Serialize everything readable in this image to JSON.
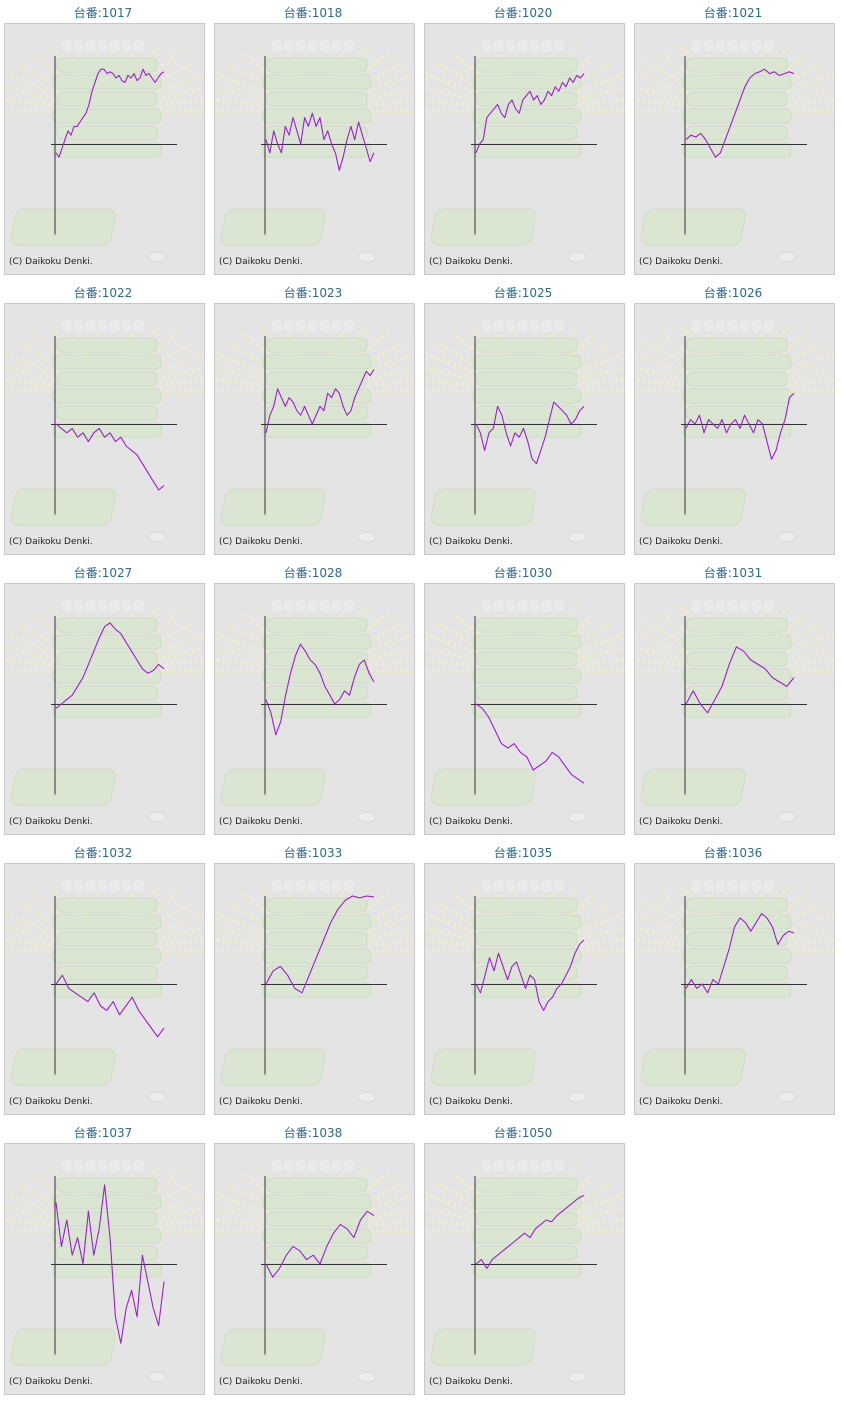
{
  "title_prefix": "台番:",
  "copyright": "(C) Daikoku Denki.",
  "colors": {
    "line": "#9b1fd0",
    "axis": "#333333",
    "title": "#2d6a8f",
    "panel_bg": "#e4e4e4"
  },
  "chart_data": [
    {
      "type": "line",
      "machine": "1017",
      "baseline": 0,
      "values": [
        -0.1,
        -0.15,
        -0.05,
        0.05,
        0.15,
        0.1,
        0.2,
        0.2,
        0.25,
        0.3,
        0.35,
        0.45,
        0.6,
        0.7,
        0.8,
        0.85,
        0.85,
        0.8,
        0.82,
        0.8,
        0.75,
        0.78,
        0.72,
        0.7,
        0.78,
        0.75,
        0.8,
        0.72,
        0.75,
        0.85,
        0.78,
        0.8,
        0.75,
        0.7,
        0.75,
        0.8,
        0.82
      ]
    },
    {
      "type": "line",
      "machine": "1018",
      "baseline": 0,
      "values": [
        0.05,
        -0.1,
        0.15,
        0.0,
        -0.1,
        0.2,
        0.1,
        0.3,
        0.15,
        0.0,
        0.3,
        0.2,
        0.35,
        0.2,
        0.3,
        0.05,
        0.15,
        0.0,
        -0.1,
        -0.3,
        -0.15,
        0.05,
        0.2,
        0.05,
        0.25,
        0.1,
        -0.05,
        -0.2,
        -0.1
      ]
    },
    {
      "type": "line",
      "machine": "1020",
      "baseline": 0,
      "values": [
        -0.1,
        0.0,
        0.05,
        0.3,
        0.35,
        0.4,
        0.45,
        0.35,
        0.3,
        0.45,
        0.5,
        0.4,
        0.35,
        0.5,
        0.55,
        0.6,
        0.5,
        0.55,
        0.45,
        0.5,
        0.6,
        0.55,
        0.65,
        0.6,
        0.7,
        0.65,
        0.75,
        0.7,
        0.78,
        0.75,
        0.8
      ]
    },
    {
      "type": "line",
      "machine": "1021",
      "baseline": 0,
      "values": [
        0.05,
        0.1,
        0.08,
        0.12,
        0.05,
        -0.05,
        -0.15,
        -0.1,
        0.05,
        0.2,
        0.35,
        0.5,
        0.65,
        0.75,
        0.8,
        0.82,
        0.85,
        0.8,
        0.82,
        0.78,
        0.8,
        0.82,
        0.8
      ]
    },
    {
      "type": "line",
      "machine": "1022",
      "baseline": 0,
      "values": [
        0.0,
        -0.05,
        -0.1,
        -0.05,
        -0.15,
        -0.1,
        -0.2,
        -0.1,
        -0.05,
        -0.15,
        -0.1,
        -0.2,
        -0.15,
        -0.25,
        -0.3,
        -0.35,
        -0.45,
        -0.55,
        -0.65,
        -0.75,
        -0.7
      ]
    },
    {
      "type": "line",
      "machine": "1023",
      "baseline": 0,
      "values": [
        -0.1,
        0.1,
        0.2,
        0.4,
        0.3,
        0.2,
        0.3,
        0.25,
        0.15,
        0.1,
        0.2,
        0.1,
        0.0,
        0.1,
        0.2,
        0.15,
        0.35,
        0.3,
        0.4,
        0.35,
        0.2,
        0.1,
        0.15,
        0.3,
        0.4,
        0.5,
        0.6,
        0.55,
        0.62
      ]
    },
    {
      "type": "line",
      "machine": "1025",
      "baseline": 0,
      "values": [
        0.0,
        -0.1,
        -0.3,
        -0.1,
        -0.05,
        0.2,
        0.1,
        -0.1,
        -0.25,
        -0.1,
        -0.15,
        -0.05,
        -0.2,
        -0.4,
        -0.45,
        -0.3,
        -0.15,
        0.05,
        0.25,
        0.2,
        0.15,
        0.1,
        0.0,
        0.05,
        0.15,
        0.2
      ]
    },
    {
      "type": "line",
      "machine": "1026",
      "baseline": 0,
      "values": [
        -0.05,
        0.05,
        0.0,
        0.1,
        -0.1,
        0.05,
        0.0,
        -0.05,
        0.05,
        -0.1,
        0.0,
        0.05,
        -0.05,
        0.1,
        0.0,
        -0.1,
        0.05,
        0.0,
        -0.2,
        -0.4,
        -0.3,
        -0.1,
        0.05,
        0.3,
        0.35
      ]
    },
    {
      "type": "line",
      "machine": "1027",
      "baseline": 0,
      "values": [
        -0.05,
        0.0,
        0.05,
        0.1,
        0.2,
        0.3,
        0.45,
        0.6,
        0.75,
        0.88,
        0.92,
        0.85,
        0.8,
        0.7,
        0.6,
        0.5,
        0.4,
        0.35,
        0.38,
        0.45,
        0.4
      ]
    },
    {
      "type": "line",
      "machine": "1028",
      "baseline": 0,
      "values": [
        0.05,
        -0.1,
        -0.35,
        -0.2,
        0.1,
        0.35,
        0.55,
        0.68,
        0.6,
        0.5,
        0.45,
        0.35,
        0.2,
        0.1,
        0.0,
        0.05,
        0.15,
        0.1,
        0.3,
        0.45,
        0.5,
        0.35,
        0.25
      ]
    },
    {
      "type": "line",
      "machine": "1030",
      "baseline": 0,
      "values": [
        0.0,
        -0.05,
        -0.15,
        -0.3,
        -0.45,
        -0.5,
        -0.45,
        -0.55,
        -0.6,
        -0.75,
        -0.7,
        -0.65,
        -0.55,
        -0.6,
        -0.7,
        -0.8,
        -0.85,
        -0.9
      ]
    },
    {
      "type": "line",
      "machine": "1031",
      "baseline": 0,
      "values": [
        0.0,
        0.15,
        0.0,
        -0.1,
        0.05,
        0.2,
        0.45,
        0.65,
        0.6,
        0.5,
        0.45,
        0.4,
        0.3,
        0.25,
        0.2,
        0.3
      ]
    },
    {
      "type": "line",
      "machine": "1032",
      "baseline": 0,
      "values": [
        0.0,
        0.1,
        -0.05,
        -0.1,
        -0.15,
        -0.2,
        -0.1,
        -0.25,
        -0.3,
        -0.2,
        -0.35,
        -0.25,
        -0.15,
        -0.3,
        -0.4,
        -0.5,
        -0.6,
        -0.5
      ]
    },
    {
      "type": "line",
      "machine": "1033",
      "baseline": 0,
      "values": [
        0.0,
        0.15,
        0.2,
        0.1,
        -0.05,
        -0.1,
        0.1,
        0.3,
        0.5,
        0.7,
        0.85,
        0.95,
        1.0,
        0.98,
        1.0,
        0.99
      ]
    },
    {
      "type": "line",
      "machine": "1035",
      "baseline": 0,
      "values": [
        0.0,
        -0.1,
        0.1,
        0.3,
        0.15,
        0.35,
        0.2,
        0.05,
        0.2,
        0.25,
        0.1,
        -0.05,
        0.1,
        0.05,
        -0.2,
        -0.3,
        -0.2,
        -0.15,
        -0.05,
        0.0,
        0.1,
        0.2,
        0.35,
        0.45,
        0.5
      ]
    },
    {
      "type": "line",
      "machine": "1036",
      "baseline": 0,
      "values": [
        -0.05,
        0.05,
        -0.05,
        0.0,
        -0.1,
        0.05,
        0.0,
        0.2,
        0.4,
        0.65,
        0.75,
        0.7,
        0.6,
        0.7,
        0.8,
        0.75,
        0.65,
        0.45,
        0.55,
        0.6,
        0.58
      ]
    },
    {
      "type": "line",
      "machine": "1037",
      "baseline": 0,
      "values": [
        0.7,
        0.2,
        0.5,
        0.1,
        0.3,
        0.0,
        0.6,
        0.1,
        0.4,
        0.9,
        0.3,
        -0.6,
        -0.9,
        -0.5,
        -0.3,
        -0.6,
        0.1,
        -0.2,
        -0.5,
        -0.7,
        -0.2
      ]
    },
    {
      "type": "line",
      "machine": "1038",
      "baseline": 0,
      "values": [
        0.0,
        -0.15,
        -0.05,
        0.1,
        0.2,
        0.15,
        0.05,
        0.1,
        0.0,
        0.2,
        0.35,
        0.45,
        0.4,
        0.3,
        0.5,
        0.6,
        0.55
      ]
    },
    {
      "type": "line",
      "machine": "1050",
      "baseline": 0,
      "values": [
        0.0,
        0.05,
        -0.05,
        0.05,
        0.1,
        0.15,
        0.2,
        0.25,
        0.3,
        0.35,
        0.3,
        0.4,
        0.45,
        0.5,
        0.48,
        0.55,
        0.6,
        0.65,
        0.7,
        0.75,
        0.78
      ]
    }
  ]
}
